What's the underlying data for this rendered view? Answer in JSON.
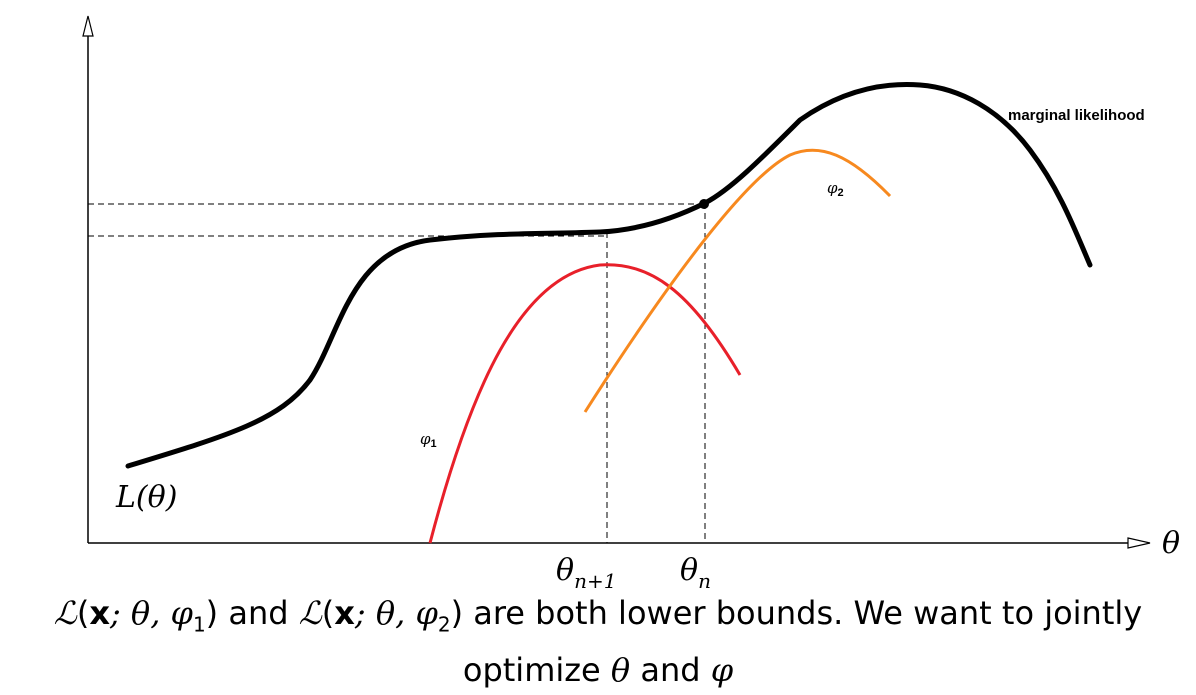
{
  "diagram": {
    "curve_label_marginal": "marginal likelihood",
    "curve_label_L": "L(θ)",
    "axis_label_theta": "θ",
    "label_phi1": "φ",
    "label_phi1_sub": "1",
    "label_phi2": "φ",
    "label_phi2_sub": "2",
    "tick_theta_n1": "θ",
    "tick_theta_n1_sub": "n+1",
    "tick_theta_n": "θ",
    "tick_theta_n_sub": "n",
    "colors": {
      "marginal_likelihood": "#000000",
      "phi1_curve": "#e8202a",
      "phi2_curve": "#f7891f"
    }
  },
  "caption": {
    "L_symbol": "ℒ",
    "open_paren": "(",
    "x_bold": "x",
    "semicolon_theta": "; θ, ",
    "phi": "φ",
    "sub1": "1",
    "sub2": "2",
    "close_paren": ")",
    "and_word": " and ",
    "rest_line1": " are both lower bounds. We want to jointly",
    "line2_start": "optimize ",
    "theta": "θ",
    "and_word2": " and ",
    "phi_end": "φ"
  }
}
